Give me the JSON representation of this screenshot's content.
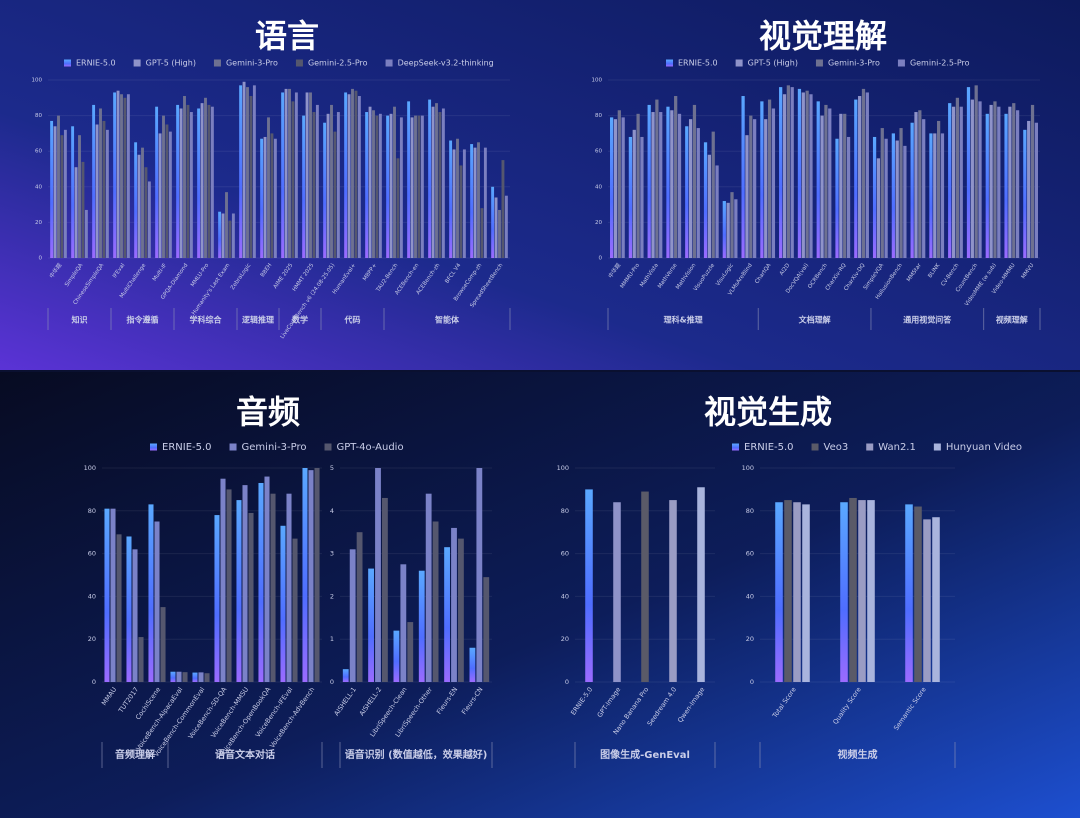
{
  "chart_data": [
    {
      "type": "bar",
      "title": "语言",
      "series": [
        {
          "name": "ERNIE-5.0",
          "color": "#4f7dff"
        },
        {
          "name": "GPT-5 (High)",
          "color": "#8f93c9"
        },
        {
          "name": "Gemini-3-Pro",
          "color": "#6e7191"
        },
        {
          "name": "Gemini-2.5-Pro",
          "color": "#55576e"
        },
        {
          "name": "DeepSeek-v3.2-thinking",
          "color": "#7b7fc0"
        }
      ],
      "plots": [
        {
          "ylim": [
            0,
            100
          ],
          "yticks": [
            0,
            20,
            40,
            60,
            80,
            100
          ],
          "categories": [
            "中华题",
            "SimpleQA",
            "ChineseSimpleQA",
            "IFEval",
            "MultiChallenge",
            "Multi-IF",
            "GPQA-Diamond",
            "MMLU-Pro",
            "Humanity's Last Exam",
            "ZebraLogic",
            "BBEH",
            "AIME 2025",
            "HMMT 2025",
            "LiveCodeBench v6 (24.08-25.05)",
            "HumanEval+",
            "MBPP+",
            "TAU2-Bench",
            "ACEBench-en",
            "ACEBench-zh",
            "BFCL V4",
            "BrowseComp-zh",
            "SpreadSheetBench"
          ],
          "values": [
            [
              77,
              74,
              86,
              93,
              65,
              85,
              86,
              84,
              26,
              97,
              67,
              93,
              80,
              76,
              93,
              82,
              80,
              88,
              89,
              66,
              64,
              40
            ],
            [
              74,
              51,
              75,
              94,
              58,
              70,
              84,
              87,
              25,
              99,
              68,
              95,
              93,
              81,
              92,
              85,
              81,
              79,
              85,
              61,
              62,
              34
            ],
            [
              80,
              69,
              84,
              92,
              62,
              80,
              91,
              90,
              37,
              96,
              79,
              95,
              93,
              86,
              95,
              83,
              85,
              80,
              87,
              67,
              65,
              27
            ],
            [
              69,
              54,
              77,
              90,
              51,
              75,
              86,
              86,
              21,
              91,
              70,
              88,
              82,
              71,
              94,
              80,
              56,
              80,
              82,
              52,
              28,
              55
            ],
            [
              72,
              27,
              72,
              92,
              43,
              71,
              82,
              85,
              25,
              97,
              67,
              93,
              86,
              82,
              91,
              81,
              79,
              80,
              84,
              61,
              62,
              35
            ]
          ],
          "groups": [
            {
              "label": "知识",
              "count": 3
            },
            {
              "label": "指令遵循",
              "count": 3
            },
            {
              "label": "学科综合",
              "count": 3
            },
            {
              "label": "逻辑推理",
              "count": 2
            },
            {
              "label": "数学",
              "count": 2
            },
            {
              "label": "代码",
              "count": 3
            },
            {
              "label": "智能体",
              "count": 6
            }
          ]
        }
      ]
    },
    {
      "type": "bar",
      "title": "视觉理解",
      "series": [
        {
          "name": "ERNIE-5.0",
          "color": "#4f7dff"
        },
        {
          "name": "GPT-5 (High)",
          "color": "#8f93c9"
        },
        {
          "name": "Gemini-3-Pro",
          "color": "#6e7191"
        },
        {
          "name": "Gemini-2.5-Pro",
          "color": "#7b7fc0"
        }
      ],
      "plots": [
        {
          "ylim": [
            0,
            100
          ],
          "yticks": [
            0,
            20,
            40,
            60,
            80,
            100
          ],
          "categories": [
            "中华题",
            "MMMU-Pro",
            "MathVista",
            "MathVerse",
            "MathVision",
            "VisuoPuzzle",
            "VisuLogic",
            "VLMsAreBlind",
            "ChartQA",
            "AI2D",
            "DocVQA(val)",
            "OCRBench",
            "CharXiv-RQ",
            "CharXiv-DQ",
            "SimpleVQA",
            "HallusionBench",
            "MMStar",
            "BLINK",
            "CV-Bench",
            "CountBench",
            "VideoMME (w sub)",
            "Video-MMMU",
            "MMVU"
          ],
          "values": [
            [
              79,
              68,
              86,
              85,
              74,
              65,
              32,
              91,
              88,
              96,
              95,
              88,
              67,
              89,
              68,
              70,
              76,
              70,
              87,
              96,
              81,
              81,
              72
            ],
            [
              78,
              72,
              82,
              83,
              78,
              58,
              31,
              69,
              78,
              92,
              93,
              80,
              81,
              91,
              56,
              66,
              82,
              70,
              85,
              89,
              86,
              85,
              77
            ],
            [
              83,
              81,
              89,
              91,
              86,
              71,
              37,
              80,
              89,
              97,
              94,
              86,
              81,
              95,
              73,
              73,
              83,
              77,
              90,
              97,
              88,
              87,
              86
            ],
            [
              79,
              68,
              82,
              81,
              73,
              52,
              33,
              78,
              84,
              96,
              92,
              84,
              68,
              93,
              67,
              63,
              78,
              70,
              85,
              88,
              85,
              83,
              76
            ]
          ],
          "groups": [
            {
              "label": "理科&推理",
              "count": 8
            },
            {
              "label": "文档理解",
              "count": 6
            },
            {
              "label": "通用视觉问答",
              "count": 6
            },
            {
              "label": "视频理解",
              "count": 3
            }
          ]
        }
      ]
    },
    {
      "type": "bar",
      "title": "音频",
      "series": [
        {
          "name": "ERNIE-5.0",
          "color": "#4f7dff"
        },
        {
          "name": "Gemini-3-Pro",
          "color": "#7b82c8"
        },
        {
          "name": "GPT-4o-Audio",
          "color": "#55576e"
        }
      ],
      "plots": [
        {
          "ylim": [
            0,
            100
          ],
          "yticks": [
            0,
            20,
            40,
            60,
            80,
            100
          ],
          "categories": [
            "MMAU",
            "TUT2017",
            "CochlScene",
            "VoiceBench-AlpacaEval",
            "VoiceBench-CommonEval",
            "VoiceBench-SD-QA",
            "VoiceBench-MMSU",
            "VoiceBench-OpenBookQA",
            "VoiceBench-IFEval",
            "VoiceBench-AdvBench"
          ],
          "values": [
            [
              81,
              68,
              83,
              4.8,
              4.4,
              78,
              85,
              93,
              73,
              100
            ],
            [
              81,
              62,
              75,
              4.8,
              4.5,
              95,
              92,
              96,
              88,
              99
            ],
            [
              69,
              21,
              35,
              4.6,
              4.1,
              90,
              79,
              88,
              67,
              100
            ]
          ],
          "groups": [
            {
              "label": "音频理解",
              "count": 3
            },
            {
              "label": "语音文本对话",
              "count": 7
            }
          ]
        },
        {
          "ylim": [
            0,
            5
          ],
          "yticks": [
            0,
            1,
            2,
            3,
            4,
            5
          ],
          "categories": [
            "AISHELL-1",
            "AISHELL-2",
            "LibriSpeech-Clean",
            "LibriSpeech-Other",
            "Fleurs-EN",
            "Fleurs-CN"
          ],
          "values": [
            [
              0.3,
              2.65,
              1.2,
              2.6,
              3.15,
              0.8
            ],
            [
              3.1,
              5.0,
              2.75,
              4.4,
              3.6,
              5.0
            ],
            [
              3.5,
              4.3,
              1.4,
              3.75,
              3.35,
              2.45
            ]
          ],
          "groups": [
            {
              "label": "语音识别 (数值越低，效果越好)",
              "count": 6
            }
          ]
        }
      ]
    },
    {
      "type": "bar",
      "title": "视觉生成",
      "series": [
        {
          "name": "ERNIE-5.0",
          "color": "#4f7dff"
        },
        {
          "name": "Veo3",
          "color": "#5a5a68"
        },
        {
          "name": "Wan2.1",
          "color": "#9a9cc4"
        },
        {
          "name": "Hunyuan Video",
          "color": "#a9b4dd"
        }
      ],
      "plots": [
        {
          "ylim": [
            0,
            100
          ],
          "yticks": [
            0,
            20,
            40,
            60,
            80,
            100
          ],
          "categories": [
            "ERNIE-5.0",
            "GPT-Image",
            "Nano Banana Pro",
            "Seedream 4.0",
            "Qwen-Image"
          ],
          "values": [
            [
              90,
              84,
              89,
              85,
              91
            ]
          ],
          "colors": [
            "#4f7dff",
            "#8f93c9",
            "#5a5a68",
            "#9a9cc4",
            "#a9b4dd"
          ],
          "groups": [
            {
              "label": "图像生成-GenEval",
              "count": 5
            }
          ]
        },
        {
          "ylim": [
            0,
            100
          ],
          "yticks": [
            0,
            20,
            40,
            60,
            80,
            100
          ],
          "categories": [
            "Total Score",
            "Quality Score",
            "Semantic Score"
          ],
          "values": [
            [
              84,
              84,
              83
            ],
            [
              85,
              86,
              82
            ],
            [
              84,
              85,
              76
            ],
            [
              83,
              85,
              77
            ]
          ],
          "groups": [
            {
              "label": "视频生成",
              "count": 3
            }
          ]
        }
      ]
    }
  ]
}
